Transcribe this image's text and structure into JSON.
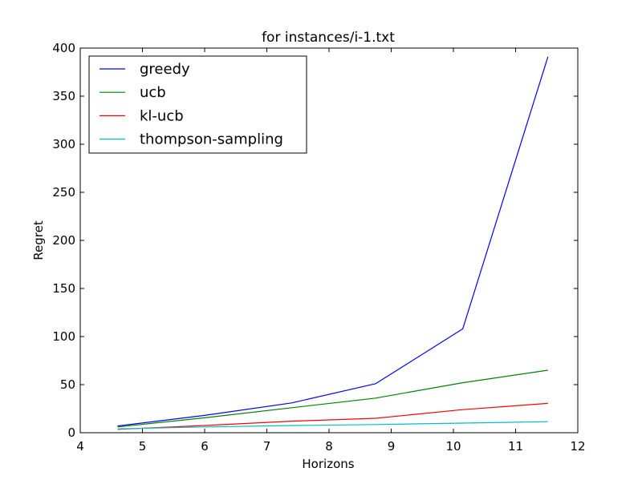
{
  "chart_data": {
    "type": "line",
    "title": "for instances/i-1.txt",
    "xlabel": "Horizons",
    "ylabel": "Regret",
    "xlim": [
      4,
      12
    ],
    "ylim": [
      0,
      400
    ],
    "xticks": [
      4,
      5,
      6,
      7,
      8,
      9,
      10,
      11,
      12
    ],
    "yticks": [
      0,
      50,
      100,
      150,
      200,
      250,
      300,
      350,
      400
    ],
    "grid": false,
    "legend_position": "top-left",
    "x": [
      4.6,
      6.0,
      7.4,
      8.75,
      10.15,
      11.52
    ],
    "series": [
      {
        "name": "greedy",
        "color": "#0000ff",
        "values": [
          7,
          18,
          31,
          51,
          108,
          391
        ]
      },
      {
        "name": "ucb",
        "color": "#008000",
        "values": [
          6,
          15.5,
          26,
          36,
          52,
          65
        ]
      },
      {
        "name": "kl-ucb",
        "color": "#ff0000",
        "values": [
          3.5,
          7.5,
          12,
          15,
          24,
          30.5
        ]
      },
      {
        "name": "thompson-sampling",
        "color": "#00bfbf",
        "values": [
          4,
          6,
          7.5,
          8.5,
          10,
          11.5
        ]
      }
    ]
  }
}
